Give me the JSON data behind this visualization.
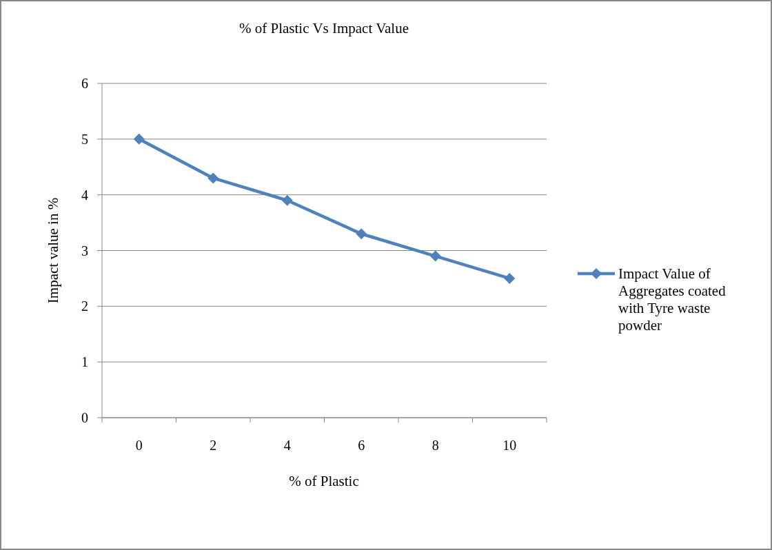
{
  "chart_data": {
    "type": "line",
    "title": "% of Plastic Vs Impact Value",
    "xlabel": "% of Plastic",
    "ylabel": "Impact value in %",
    "categories": [
      "0",
      "2",
      "4",
      "6",
      "8",
      "10"
    ],
    "series": [
      {
        "name": "Impact Value of Aggregates coated with Tyre waste powder",
        "color": "#4f81bd",
        "values": [
          5,
          4.3,
          3.9,
          3.3,
          2.9,
          2.5
        ]
      }
    ],
    "ylim": [
      0,
      6
    ],
    "yticks": [
      0,
      1,
      2,
      3,
      4,
      5,
      6
    ],
    "grid": "y",
    "legend": "right",
    "marker": "diamond",
    "line_style": "solid"
  }
}
